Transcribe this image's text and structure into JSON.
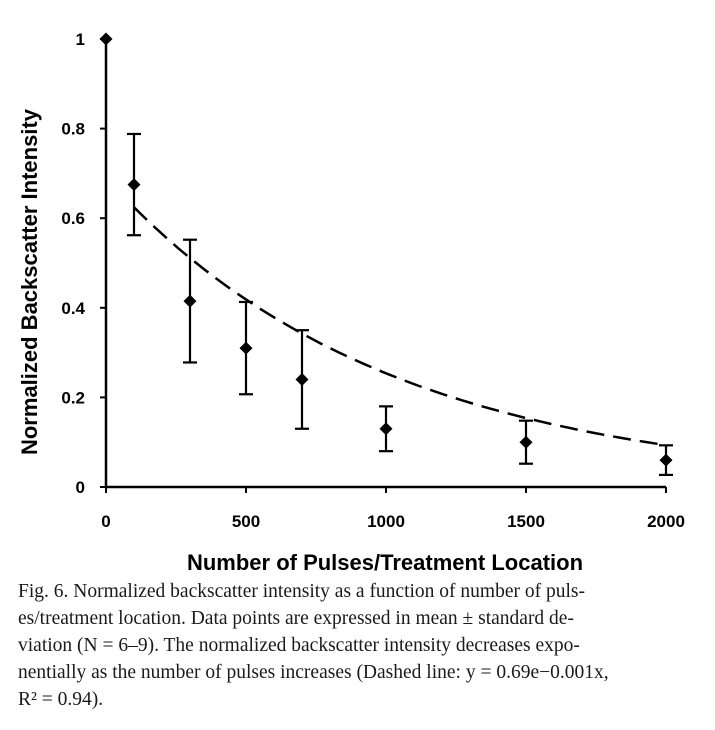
{
  "chart_data": {
    "type": "scatter",
    "xlabel": "Number of Pulses/Treatment Location",
    "ylabel": "Normalized Backscatter Intensity",
    "xlim": [
      0,
      2000
    ],
    "ylim": [
      0,
      1
    ],
    "x_ticks": [
      "0",
      "500",
      "1000",
      "1500",
      "2000"
    ],
    "y_ticks": [
      "0",
      "0.2",
      "0.4",
      "0.6",
      "0.8",
      "1"
    ],
    "grid": false,
    "series": [
      {
        "x": [
          0,
          100,
          300,
          500,
          700,
          1000,
          1500,
          2000
        ],
        "y": [
          1.0,
          0.675,
          0.415,
          0.31,
          0.24,
          0.13,
          0.1,
          0.06
        ],
        "error": [
          0.0,
          0.113,
          0.137,
          0.103,
          0.11,
          0.05,
          0.048,
          0.033
        ],
        "marker": "diamond",
        "color": "#000000"
      }
    ],
    "fit": {
      "style": "dashed",
      "color": "#000000",
      "a": 0.69,
      "b": -0.001,
      "x_range": [
        100,
        2000
      ]
    }
  },
  "caption": {
    "lines": [
      "Fig. 6. Normalized backscatter intensity as a function of number of puls-",
      "es/treatment location. Data points are expressed in mean ± standard de-",
      "viation (N = 6–9). The normalized backscatter intensity decreases expo-",
      "nentially as the number of pulses increases (Dashed line: y = 0.69e−0.001x,",
      "R² = 0.94)."
    ]
  }
}
